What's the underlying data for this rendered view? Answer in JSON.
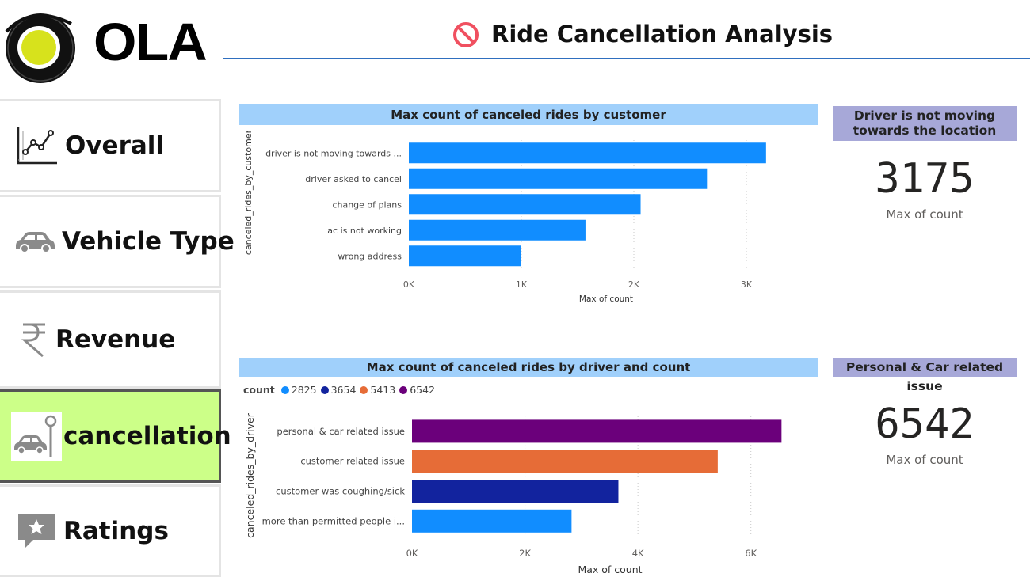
{
  "logo": {
    "text": "OLA"
  },
  "sidebar": {
    "items": [
      {
        "label": "Overall",
        "icon": "line-chart-icon"
      },
      {
        "label": "Vehicle Type",
        "icon": "car-icon"
      },
      {
        "label": "Revenue",
        "icon": "rupee-icon"
      },
      {
        "label": "cancellation",
        "icon": "cancelled-car-icon",
        "active": true
      },
      {
        "label": "Ratings",
        "icon": "star-comment-icon"
      }
    ]
  },
  "header": {
    "title": "Ride Cancellation Analysis",
    "icon": "prohibited-icon"
  },
  "customer_chart": {
    "title": "Max count of canceled rides by customer",
    "ylabel": "canceled_rides_by_customer",
    "xlabel": "Max of count",
    "ticks": [
      "0K",
      "1K",
      "2K",
      "3K"
    ]
  },
  "driver_chart": {
    "title": "Max count of canceled rides by driver and count",
    "ylabel": "canceled_rides_by_driver",
    "xlabel": "Max of count",
    "ticks": [
      "0K",
      "2K",
      "4K",
      "6K"
    ],
    "legend_title": "count",
    "legend": [
      "2825",
      "3654",
      "5413",
      "6542"
    ]
  },
  "cards": {
    "customer": {
      "heading": "Driver is not moving towards the location",
      "value": "3175",
      "sub": "Max of count"
    },
    "driver": {
      "heading": "Personal & Car related issue",
      "value": "6542",
      "sub": "Max of count"
    }
  },
  "colors": {
    "bar_blue": "#118dff",
    "c2825": "#118dff",
    "c3654": "#12239e",
    "c5413": "#e66c37",
    "c6542": "#6b007b",
    "panel_title_bg": "#a0d0fb",
    "card_head_bg": "#a7a8d8",
    "active_nav": "#ccff88"
  },
  "chart_data": [
    {
      "type": "bar",
      "orientation": "horizontal",
      "title": "Max count of canceled rides by customer",
      "categories": [
        "driver is not moving towards ...",
        "driver asked to cancel",
        "change of plans",
        "ac is not working",
        "wrong address"
      ],
      "values": [
        3175,
        2650,
        2060,
        1570,
        1000
      ],
      "xlabel": "Max of count",
      "ylabel": "canceled_rides_by_customer",
      "xlim": [
        0,
        3500
      ],
      "grid": true
    },
    {
      "type": "bar",
      "orientation": "horizontal",
      "title": "Max count of canceled rides by driver and count",
      "categories": [
        "personal & car related issue",
        "customer related issue",
        "customer was coughing/sick",
        "more than permitted people i..."
      ],
      "values": [
        6542,
        5413,
        3654,
        2825
      ],
      "color_by": [
        "6542",
        "5413",
        "3654",
        "2825"
      ],
      "xlabel": "Max of count",
      "ylabel": "canceled_rides_by_driver",
      "xlim": [
        0,
        7000
      ],
      "legend": "top-left",
      "grid": true
    }
  ]
}
